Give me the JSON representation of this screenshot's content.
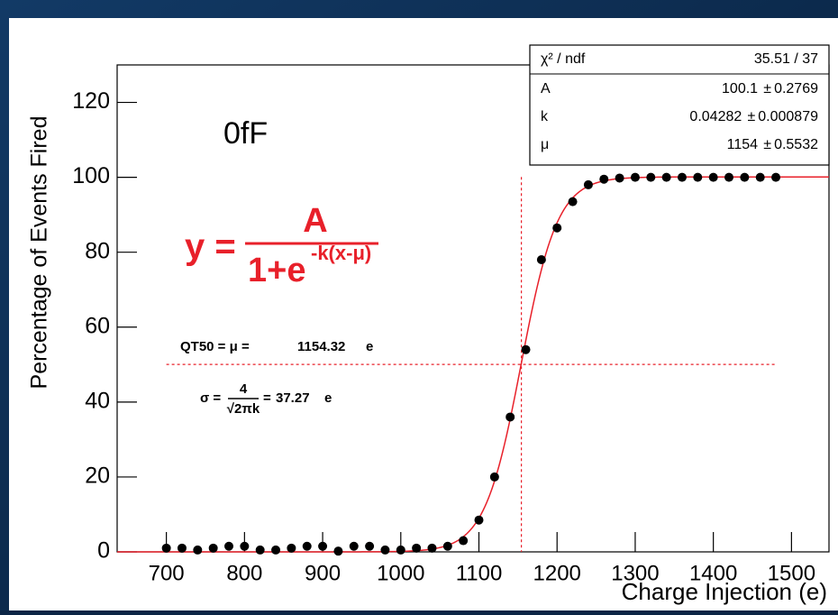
{
  "chart_data": {
    "type": "scatter",
    "x_label": "Charge Injection (e)",
    "y_label": "Percentage of Events Fired",
    "x": [
      700,
      720,
      740,
      760,
      780,
      800,
      820,
      840,
      860,
      880,
      900,
      920,
      940,
      960,
      980,
      1000,
      1020,
      1040,
      1060,
      1080,
      1100,
      1120,
      1140,
      1160,
      1180,
      1200,
      1220,
      1240,
      1260,
      1280,
      1300,
      1320,
      1340,
      1360,
      1380,
      1400,
      1420,
      1440,
      1460,
      1480
    ],
    "values": [
      1,
      1,
      0.5,
      1,
      1.5,
      1.5,
      0.5,
      0.5,
      1,
      1.5,
      1.5,
      0.2,
      1.5,
      1.5,
      0.5,
      0.5,
      1,
      1,
      1.5,
      3,
      8.5,
      20,
      36,
      54,
      78,
      86.5,
      93.5,
      98,
      99.5,
      99.8,
      100,
      100,
      100,
      100,
      100,
      100,
      100,
      100,
      100,
      100
    ],
    "color": "#000000",
    "fit_color": "#e8202a",
    "xlim": [
      637,
      1548
    ],
    "ylim": [
      0,
      130
    ],
    "xticks": [
      700,
      800,
      900,
      1000,
      1100,
      1200,
      1300,
      1400,
      1500
    ],
    "yticks": [
      0,
      20,
      40,
      60,
      80,
      100,
      120
    ],
    "stats": {
      "chi2_label": "χ² / ndf",
      "chi2_value": "35.51 / 37",
      "pm": "±",
      "rows": [
        {
          "label": "A",
          "value": 100.1,
          "error": 0.2769
        },
        {
          "label": "k",
          "value": 0.04282,
          "error": 0.000879
        },
        {
          "label": "μ",
          "value": 1154,
          "error": 0.5532
        }
      ]
    },
    "capacitance_label": "0fF",
    "formula": {
      "lhs": "y =",
      "numerator": "A",
      "denominator": "1+e",
      "exponent": "-k(x-μ)"
    },
    "qt50": {
      "prefix": "QT50 = μ =",
      "value": 1154.32,
      "unit": "e"
    },
    "sigma": {
      "prefix": "σ =",
      "numerator": "4",
      "denominator": "√2πk",
      "equals": "=",
      "value": 37.27,
      "unit": "e"
    }
  }
}
